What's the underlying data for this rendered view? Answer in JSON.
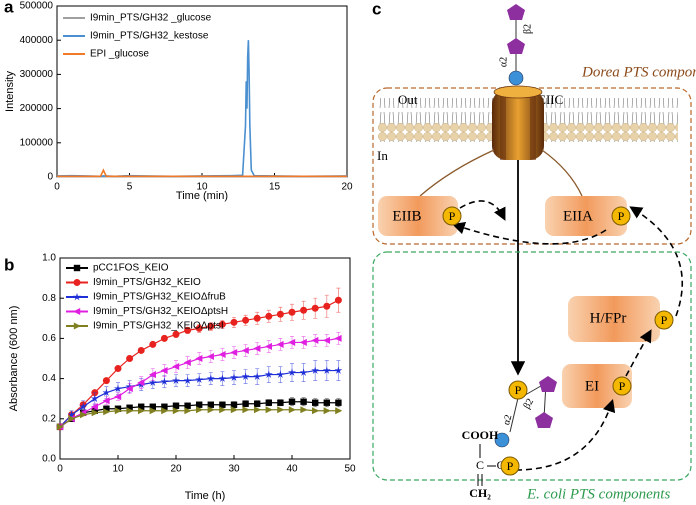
{
  "chart_data": [
    {
      "type": "line",
      "panel_label": "a",
      "xlabel": "Time (min)",
      "ylabel": "Intensity",
      "xlim": [
        0,
        20
      ],
      "ylim": [
        0,
        500000
      ],
      "xticks": [
        0,
        5,
        10,
        15,
        20
      ],
      "yticks": [
        0,
        100000,
        200000,
        300000,
        400000,
        500000
      ],
      "legend": "upper left",
      "x": [
        0,
        1,
        2,
        3,
        3.2,
        3.4,
        4,
        5,
        6,
        8,
        10,
        12,
        12.8,
        13,
        13.05,
        13.1,
        13.15,
        13.2,
        13.25,
        13.3,
        13.4,
        13.6,
        15,
        17,
        20
      ],
      "series": [
        {
          "name": "I9min_PTS/GH32 _glucose",
          "color": "#a0a0a0",
          "values": [
            1000,
            1000,
            1000,
            1000,
            1000,
            1000,
            1000,
            1000,
            1000,
            1000,
            1000,
            1000,
            1000,
            1000,
            1000,
            1000,
            1000,
            1000,
            1000,
            1000,
            1000,
            1000,
            1000,
            1000,
            1000
          ]
        },
        {
          "name": "I9min_PTS/GH32_kestose",
          "color": "#4a8fd0",
          "values": [
            3000,
            4000,
            3000,
            2000,
            3000,
            3000,
            2000,
            4000,
            3000,
            2000,
            3000,
            4000,
            5000,
            150000,
            280000,
            200000,
            350000,
            400000,
            300000,
            150000,
            20000,
            4000,
            3000,
            2000,
            3000
          ]
        },
        {
          "name": "EPI _glucose",
          "color": "#f07a28",
          "values": [
            2000,
            2000,
            2000,
            2000,
            20000,
            2000,
            2000,
            2000,
            2000,
            2000,
            2000,
            2000,
            2000,
            2000,
            2000,
            2000,
            2000,
            2000,
            2000,
            2000,
            2000,
            2000,
            2000,
            2000,
            2000
          ]
        }
      ]
    },
    {
      "type": "line",
      "panel_label": "b",
      "xlabel": "Time (h)",
      "ylabel": "Absorbance (600 nm)",
      "xlim": [
        0,
        50
      ],
      "ylim": [
        0,
        1.0
      ],
      "xticks": [
        0,
        10,
        20,
        30,
        40,
        50
      ],
      "yticks": [
        {
          "value": 0,
          "label": "0.0"
        },
        0.2,
        0.4,
        0.6,
        0.8,
        {
          "value": 1.0,
          "label": "1.0"
        }
      ],
      "legend": "upper left",
      "x": [
        0,
        2,
        4,
        6,
        8,
        10,
        12,
        14,
        16,
        18,
        20,
        22,
        24,
        26,
        28,
        30,
        32,
        34,
        36,
        38,
        40,
        42,
        44,
        46,
        48
      ],
      "series": [
        {
          "name": "pCC1FOS_KEIO",
          "color": "#000000",
          "marker": "square",
          "values": [
            0.16,
            0.2,
            0.23,
            0.24,
            0.25,
            0.25,
            0.255,
            0.26,
            0.26,
            0.26,
            0.265,
            0.265,
            0.27,
            0.27,
            0.27,
            0.27,
            0.275,
            0.275,
            0.28,
            0.28,
            0.285,
            0.285,
            0.28,
            0.28,
            0.28
          ],
          "errors": [
            0.01,
            0.01,
            0.01,
            0.01,
            0.01,
            0.01,
            0.01,
            0.01,
            0.01,
            0.01,
            0.01,
            0.01,
            0.01,
            0.01,
            0.01,
            0.015,
            0.015,
            0.015,
            0.015,
            0.015,
            0.02,
            0.02,
            0.02,
            0.02,
            0.02
          ]
        },
        {
          "name": "I9min_PTS/GH32_KEIO",
          "color": "#e8231f",
          "marker": "circle",
          "values": [
            0.16,
            0.22,
            0.27,
            0.33,
            0.39,
            0.45,
            0.5,
            0.54,
            0.57,
            0.6,
            0.62,
            0.64,
            0.65,
            0.66,
            0.67,
            0.68,
            0.69,
            0.7,
            0.71,
            0.72,
            0.73,
            0.74,
            0.75,
            0.76,
            0.79
          ],
          "errors": [
            0.01,
            0.01,
            0.01,
            0.01,
            0.01,
            0.01,
            0.01,
            0.01,
            0.01,
            0.01,
            0.015,
            0.015,
            0.02,
            0.02,
            0.02,
            0.025,
            0.025,
            0.03,
            0.03,
            0.035,
            0.04,
            0.045,
            0.05,
            0.055,
            0.06
          ]
        },
        {
          "name": "I9min_PTS/GH32_KEIOΔfruB",
          "color": "#1f2fd8",
          "marker": "star",
          "values": [
            0.16,
            0.22,
            0.26,
            0.3,
            0.33,
            0.35,
            0.36,
            0.37,
            0.38,
            0.385,
            0.39,
            0.39,
            0.395,
            0.4,
            0.4,
            0.405,
            0.41,
            0.41,
            0.42,
            0.42,
            0.43,
            0.43,
            0.44,
            0.44,
            0.44
          ],
          "errors": [
            0.01,
            0.02,
            0.03,
            0.03,
            0.03,
            0.03,
            0.03,
            0.03,
            0.03,
            0.03,
            0.03,
            0.03,
            0.03,
            0.03,
            0.035,
            0.035,
            0.035,
            0.04,
            0.04,
            0.04,
            0.045,
            0.045,
            0.05,
            0.05,
            0.05
          ]
        },
        {
          "name": "I9min_PTS/GH32_KEIOΔptsH",
          "color": "#e020e0",
          "marker": "triangle-left",
          "values": [
            0.16,
            0.2,
            0.23,
            0.26,
            0.29,
            0.31,
            0.35,
            0.38,
            0.42,
            0.44,
            0.46,
            0.48,
            0.5,
            0.51,
            0.52,
            0.53,
            0.54,
            0.55,
            0.56,
            0.57,
            0.58,
            0.58,
            0.59,
            0.59,
            0.6
          ],
          "errors": [
            0.01,
            0.01,
            0.01,
            0.015,
            0.02,
            0.02,
            0.025,
            0.03,
            0.03,
            0.03,
            0.03,
            0.03,
            0.03,
            0.03,
            0.03,
            0.03,
            0.03,
            0.03,
            0.03,
            0.03,
            0.03,
            0.03,
            0.03,
            0.03,
            0.03
          ]
        },
        {
          "name": "I9min_PTS/GH32_KEIOΔptsI",
          "color": "#808020",
          "marker": "triangle-right",
          "values": [
            0.16,
            0.2,
            0.22,
            0.23,
            0.235,
            0.24,
            0.24,
            0.24,
            0.24,
            0.24,
            0.24,
            0.24,
            0.245,
            0.245,
            0.245,
            0.245,
            0.245,
            0.245,
            0.245,
            0.245,
            0.245,
            0.245,
            0.24,
            0.24,
            0.24
          ],
          "errors": [
            0.005,
            0.005,
            0.005,
            0.005,
            0.005,
            0.005,
            0.005,
            0.005,
            0.005,
            0.005,
            0.005,
            0.005,
            0.005,
            0.005,
            0.005,
            0.005,
            0.005,
            0.005,
            0.005,
            0.005,
            0.005,
            0.005,
            0.005,
            0.005,
            0.005
          ]
        }
      ]
    }
  ],
  "diagram": {
    "panel_label": "c",
    "alpha": "α2",
    "beta": "β2",
    "top_label": "Dorea PTS components",
    "out": "Out",
    "in": "In",
    "eiic": "EIIC",
    "eiib": "EIIB",
    "eiia": "EIIA",
    "phosphate": "P",
    "hpr": "H/FPr",
    "ei": "EI",
    "cooh": "COOH",
    "carbon": "C",
    "oxygen": "O",
    "ch2": "CH₂",
    "bottom_label": "E. coli PTS components"
  }
}
